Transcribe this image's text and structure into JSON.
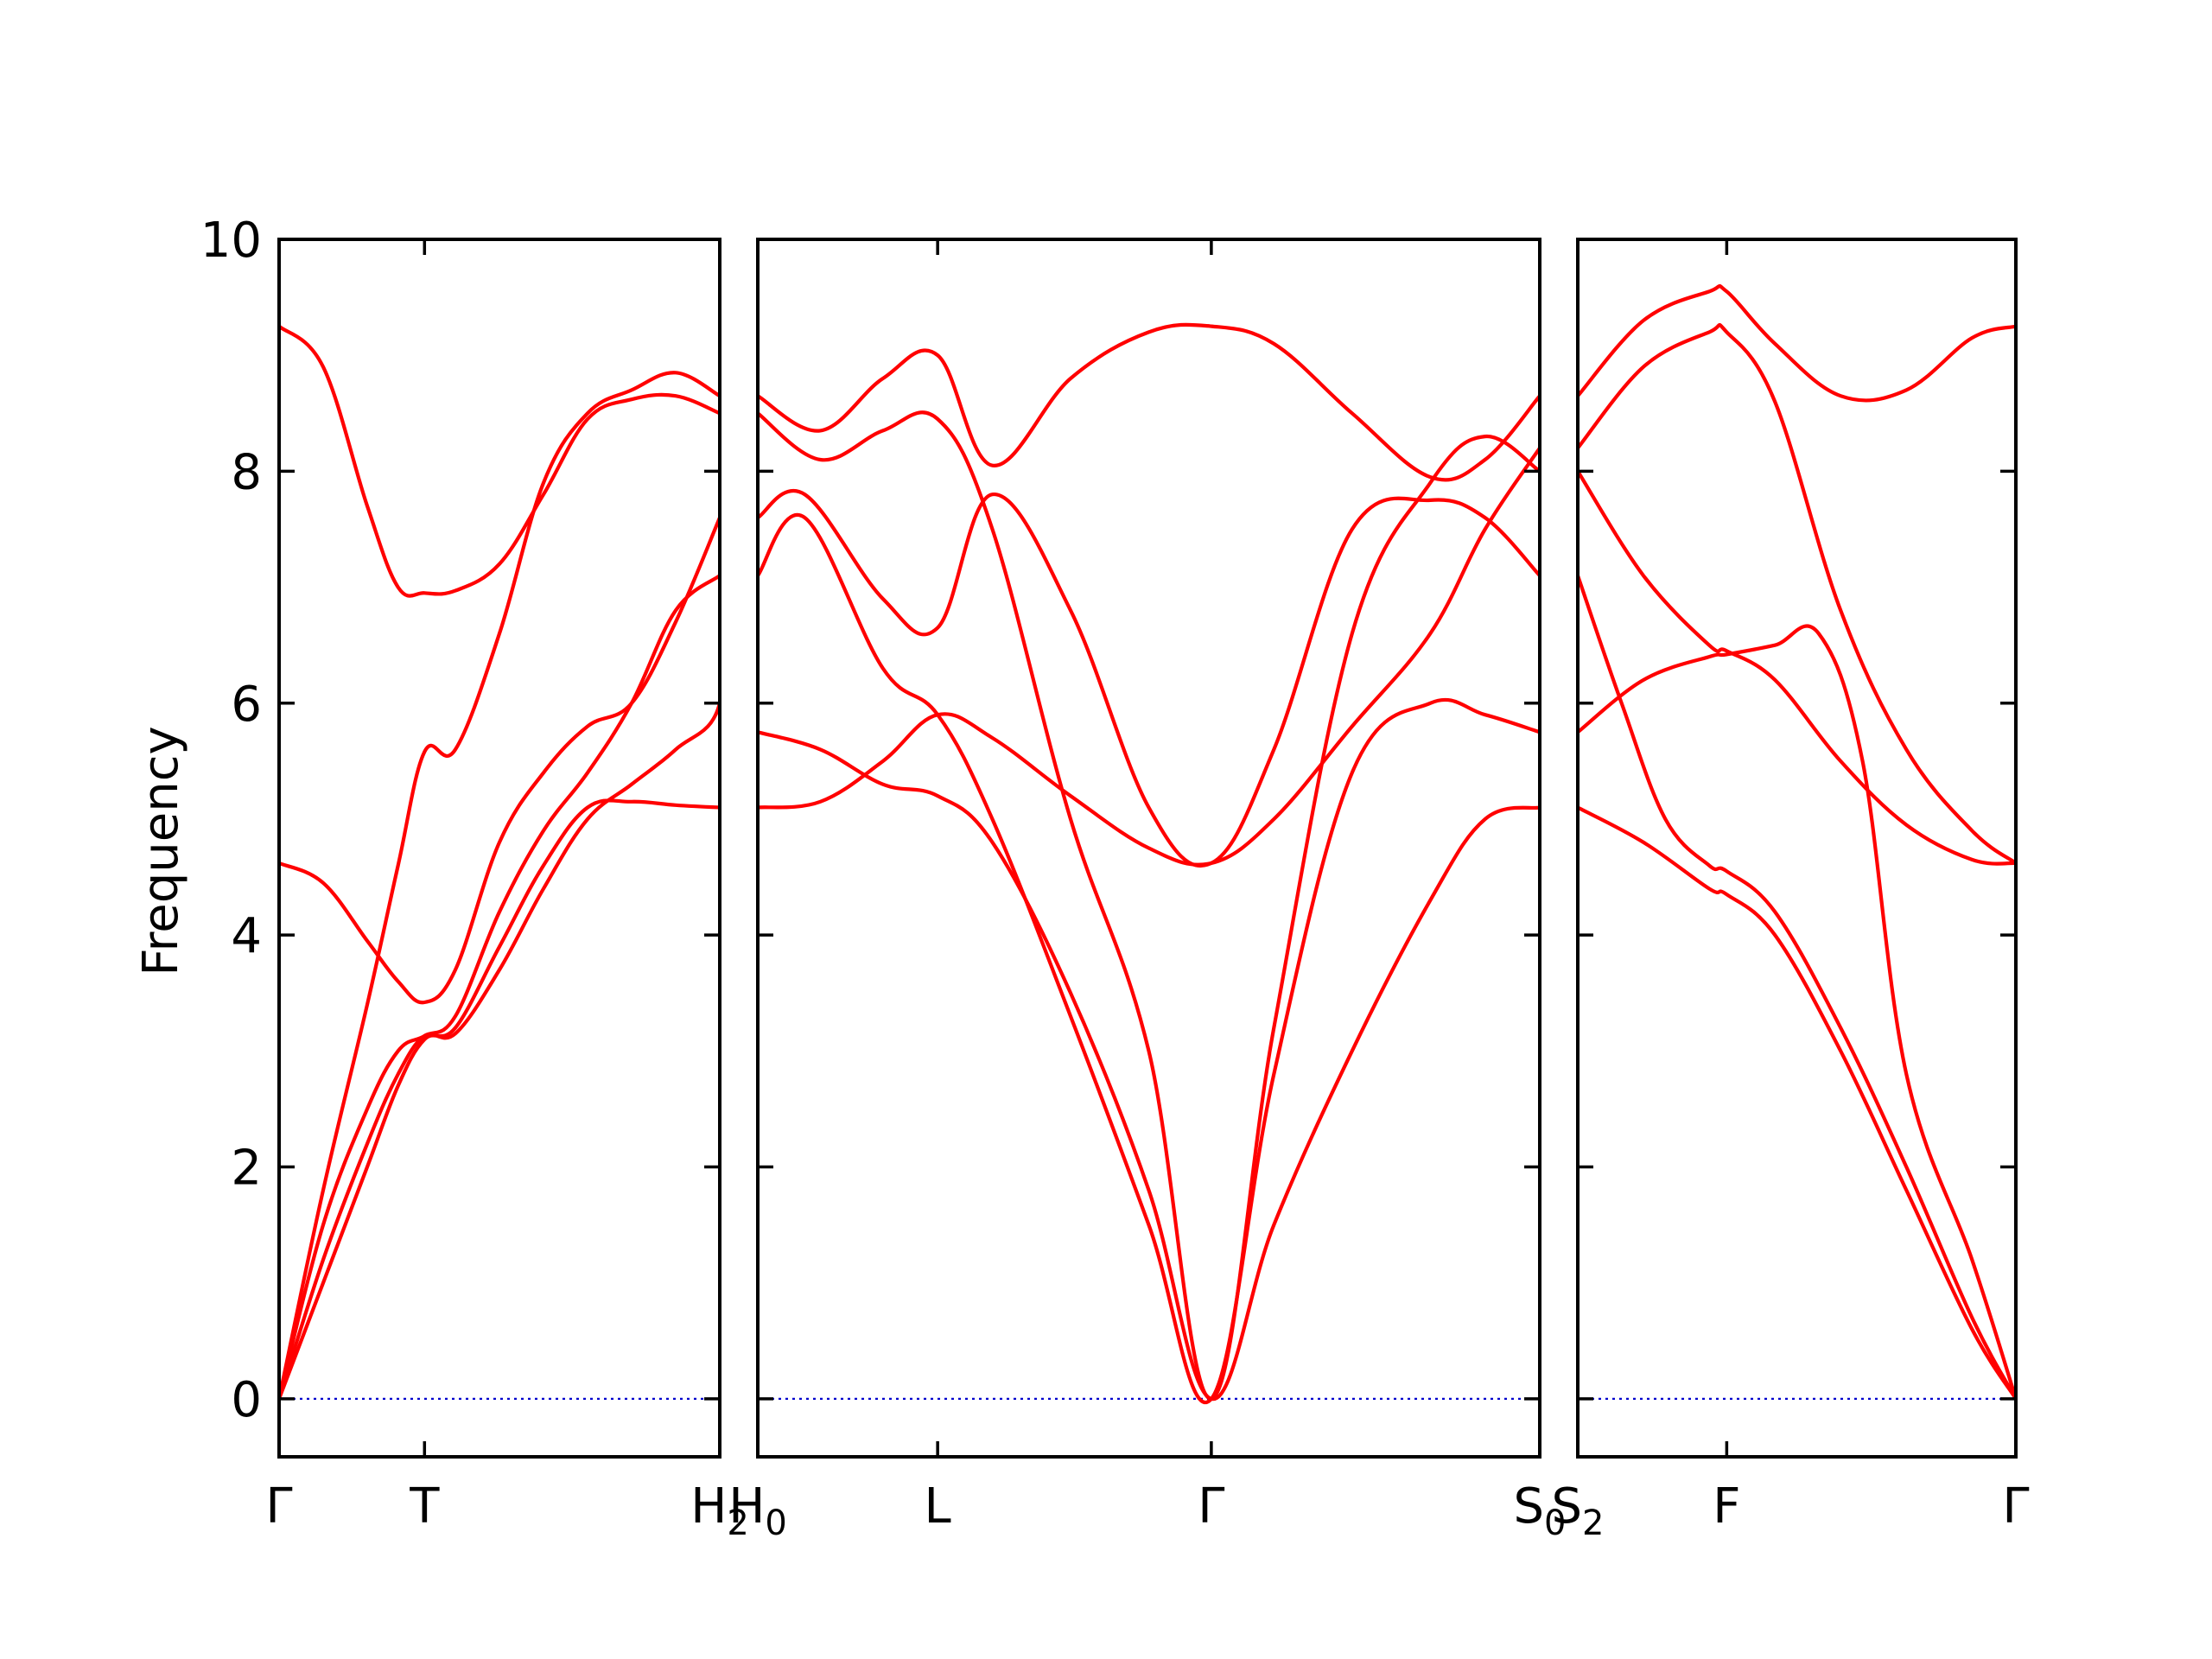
{
  "chart_data": {
    "type": "line",
    "ylabel": "Frequency",
    "ylim": [
      -0.5,
      10
    ],
    "yticks": [
      0,
      2,
      4,
      6,
      8,
      10
    ],
    "yticklabels": [
      "0",
      "2",
      "4",
      "6",
      "8",
      "10"
    ],
    "grid": false,
    "colors": {
      "bands": "#ff0000",
      "zero_line": "#0000cc",
      "axes": "#000000"
    },
    "panels": [
      {
        "xticks": [
          0,
          0.33,
          1
        ],
        "xticklabels": [
          {
            "main": "Γ",
            "sub": ""
          },
          {
            "main": "T",
            "sub": ""
          },
          {
            "main": "H",
            "sub": "2"
          }
        ],
        "bands": [
          [
            [
              0,
              0
            ],
            [
              0.1,
              1.2
            ],
            [
              0.2,
              2.2
            ],
            [
              0.27,
              2.8
            ],
            [
              0.33,
              3.13
            ],
            [
              0.4,
              3.15
            ],
            [
              0.5,
              3.7
            ],
            [
              0.6,
              4.4
            ],
            [
              0.7,
              5.0
            ],
            [
              0.8,
              5.3
            ],
            [
              0.9,
              5.6
            ],
            [
              1,
              6.0
            ],
            [
              1,
              7.1
            ]
          ],
          [
            [
              0,
              0
            ],
            [
              0.1,
              1.5
            ],
            [
              0.2,
              2.5
            ],
            [
              0.27,
              3.0
            ],
            [
              0.33,
              3.13
            ],
            [
              0.4,
              3.3
            ],
            [
              0.5,
              4.2
            ],
            [
              0.6,
              4.9
            ],
            [
              0.7,
              5.4
            ],
            [
              0.8,
              6.0
            ],
            [
              0.9,
              6.8
            ],
            [
              1,
              7.1
            ]
          ],
          [
            [
              0,
              0
            ],
            [
              0.1,
              1.8
            ],
            [
              0.2,
              3.4
            ],
            [
              0.27,
              4.6
            ],
            [
              0.33,
              5.58
            ],
            [
              0.4,
              5.6
            ],
            [
              0.5,
              6.6
            ],
            [
              0.6,
              7.9
            ],
            [
              0.7,
              8.5
            ],
            [
              0.8,
              8.7
            ],
            [
              0.9,
              8.85
            ],
            [
              1,
              8.65
            ]
          ],
          [
            [
              0,
              4.62
            ],
            [
              0.1,
              4.45
            ],
            [
              0.2,
              3.95
            ],
            [
              0.27,
              3.6
            ],
            [
              0.33,
              3.42
            ],
            [
              0.4,
              3.7
            ],
            [
              0.5,
              4.8
            ],
            [
              0.6,
              5.4
            ],
            [
              0.7,
              5.8
            ],
            [
              0.8,
              6.0
            ],
            [
              0.9,
              6.7
            ],
            [
              1,
              7.6
            ]
          ],
          [
            [
              0,
              9.25
            ],
            [
              0.1,
              8.9
            ],
            [
              0.2,
              7.7
            ],
            [
              0.27,
              7.0
            ],
            [
              0.33,
              6.95
            ],
            [
              0.4,
              6.97
            ],
            [
              0.5,
              7.2
            ],
            [
              0.6,
              7.8
            ],
            [
              0.7,
              8.45
            ],
            [
              0.8,
              8.62
            ],
            [
              0.9,
              8.65
            ],
            [
              1,
              8.5
            ]
          ],
          [
            [
              0,
              0
            ],
            [
              0.1,
              1.0
            ],
            [
              0.2,
              2.0
            ],
            [
              0.27,
              2.7
            ],
            [
              0.33,
              3.1
            ],
            [
              0.4,
              3.2
            ],
            [
              0.5,
              3.9
            ],
            [
              0.6,
              4.6
            ],
            [
              0.7,
              5.1
            ],
            [
              0.8,
              5.15
            ],
            [
              0.9,
              5.12
            ],
            [
              1,
              5.1
            ]
          ]
        ]
      },
      {
        "xticks": [
          0,
          0.23,
          0.58,
          1
        ],
        "xticklabels": [
          {
            "main": "H",
            "sub": "0"
          },
          {
            "main": "L",
            "sub": ""
          },
          {
            "main": "Γ",
            "sub": ""
          },
          {
            "main": "S",
            "sub": "0"
          }
        ],
        "bands": [
          [
            [
              0,
              5.75
            ],
            [
              0.08,
              5.6
            ],
            [
              0.16,
              5.3
            ],
            [
              0.23,
              5.2
            ],
            [
              0.3,
              4.8
            ],
            [
              0.4,
              3.5
            ],
            [
              0.5,
              1.8
            ],
            [
              0.58,
              0
            ],
            [
              0.66,
              1.5
            ],
            [
              0.76,
              3.0
            ],
            [
              0.86,
              4.3
            ],
            [
              0.93,
              5.0
            ],
            [
              1,
              5.1
            ]
          ],
          [
            [
              0,
              5.1
            ],
            [
              0.08,
              5.15
            ],
            [
              0.16,
              5.5
            ],
            [
              0.23,
              5.9
            ],
            [
              0.3,
              5.7
            ],
            [
              0.4,
              5.2
            ],
            [
              0.5,
              4.75
            ],
            [
              0.58,
              4.62
            ],
            [
              0.66,
              5.0
            ],
            [
              0.76,
              5.8
            ],
            [
              0.86,
              6.6
            ],
            [
              0.93,
              7.5
            ],
            [
              1,
              8.2
            ]
          ],
          [
            [
              0,
              7.1
            ],
            [
              0.06,
              7.6
            ],
            [
              0.16,
              6.3
            ],
            [
              0.23,
              5.9
            ],
            [
              0.3,
              5.0
            ],
            [
              0.4,
              3.3
            ],
            [
              0.5,
              1.5
            ],
            [
              0.58,
              0
            ],
            [
              0.66,
              2.8
            ],
            [
              0.76,
              5.4
            ],
            [
              0.86,
              6.0
            ],
            [
              0.93,
              5.9
            ],
            [
              1,
              5.75
            ]
          ],
          [
            [
              0,
              7.6
            ],
            [
              0.06,
              7.8
            ],
            [
              0.16,
              6.9
            ],
            [
              0.23,
              6.65
            ],
            [
              0.3,
              7.8
            ],
            [
              0.4,
              6.8
            ],
            [
              0.5,
              5.1
            ],
            [
              0.58,
              4.62
            ],
            [
              0.66,
              5.6
            ],
            [
              0.76,
              7.5
            ],
            [
              0.86,
              7.75
            ],
            [
              0.93,
              7.6
            ],
            [
              1,
              7.1
            ]
          ],
          [
            [
              0,
              8.5
            ],
            [
              0.08,
              8.1
            ],
            [
              0.16,
              8.35
            ],
            [
              0.23,
              8.45
            ],
            [
              0.3,
              7.5
            ],
            [
              0.4,
              5.0
            ],
            [
              0.5,
              3.0
            ],
            [
              0.58,
              0
            ],
            [
              0.66,
              3.2
            ],
            [
              0.76,
              6.6
            ],
            [
              0.86,
              7.9
            ],
            [
              0.93,
              8.3
            ],
            [
              1,
              8.0
            ]
          ],
          [
            [
              0,
              8.65
            ],
            [
              0.08,
              8.35
            ],
            [
              0.16,
              8.8
            ],
            [
              0.23,
              9.0
            ],
            [
              0.3,
              8.05
            ],
            [
              0.4,
              8.8
            ],
            [
              0.5,
              9.2
            ],
            [
              0.58,
              9.25
            ],
            [
              0.66,
              9.1
            ],
            [
              0.76,
              8.5
            ],
            [
              0.86,
              7.95
            ],
            [
              0.93,
              8.1
            ],
            [
              1,
              8.65
            ]
          ]
        ]
      },
      {
        "xticks": [
          0,
          0.34,
          1
        ],
        "xticklabels": [
          {
            "main": "S",
            "sub": "2"
          },
          {
            "main": "F",
            "sub": ""
          },
          {
            "main": "Γ",
            "sub": ""
          }
        ],
        "bands": [
          [
            [
              0,
              5.1
            ],
            [
              0.15,
              4.8
            ],
            [
              0.3,
              4.4
            ],
            [
              0.34,
              4.35
            ],
            [
              0.45,
              4.0
            ],
            [
              0.6,
              3.0
            ],
            [
              0.75,
              1.8
            ],
            [
              0.9,
              0.6
            ],
            [
              1,
              0
            ]
          ],
          [
            [
              0,
              7.1
            ],
            [
              0.1,
              6.0
            ],
            [
              0.2,
              5.0
            ],
            [
              0.3,
              4.6
            ],
            [
              0.34,
              4.55
            ],
            [
              0.45,
              4.2
            ],
            [
              0.6,
              3.2
            ],
            [
              0.75,
              2.0
            ],
            [
              0.9,
              0.7
            ],
            [
              1,
              0
            ]
          ],
          [
            [
              0,
              8.0
            ],
            [
              0.15,
              7.1
            ],
            [
              0.3,
              6.5
            ],
            [
              0.34,
              6.45
            ],
            [
              0.45,
              6.2
            ],
            [
              0.6,
              5.5
            ],
            [
              0.75,
              4.95
            ],
            [
              0.9,
              4.65
            ],
            [
              1,
              4.62
            ]
          ],
          [
            [
              0,
              5.75
            ],
            [
              0.15,
              6.2
            ],
            [
              0.3,
              6.4
            ],
            [
              0.34,
              6.42
            ],
            [
              0.45,
              6.5
            ],
            [
              0.55,
              6.6
            ],
            [
              0.65,
              5.5
            ],
            [
              0.75,
              2.8
            ],
            [
              0.9,
              1.2
            ],
            [
              1,
              0
            ]
          ],
          [
            [
              0,
              8.2
            ],
            [
              0.15,
              8.9
            ],
            [
              0.3,
              9.2
            ],
            [
              0.34,
              9.2
            ],
            [
              0.45,
              8.6
            ],
            [
              0.6,
              6.8
            ],
            [
              0.75,
              5.6
            ],
            [
              0.9,
              4.9
            ],
            [
              1,
              4.62
            ]
          ],
          [
            [
              0,
              8.65
            ],
            [
              0.15,
              9.3
            ],
            [
              0.3,
              9.55
            ],
            [
              0.34,
              9.55
            ],
            [
              0.45,
              9.1
            ],
            [
              0.6,
              8.65
            ],
            [
              0.75,
              8.7
            ],
            [
              0.9,
              9.15
            ],
            [
              1,
              9.25
            ]
          ]
        ]
      }
    ]
  }
}
